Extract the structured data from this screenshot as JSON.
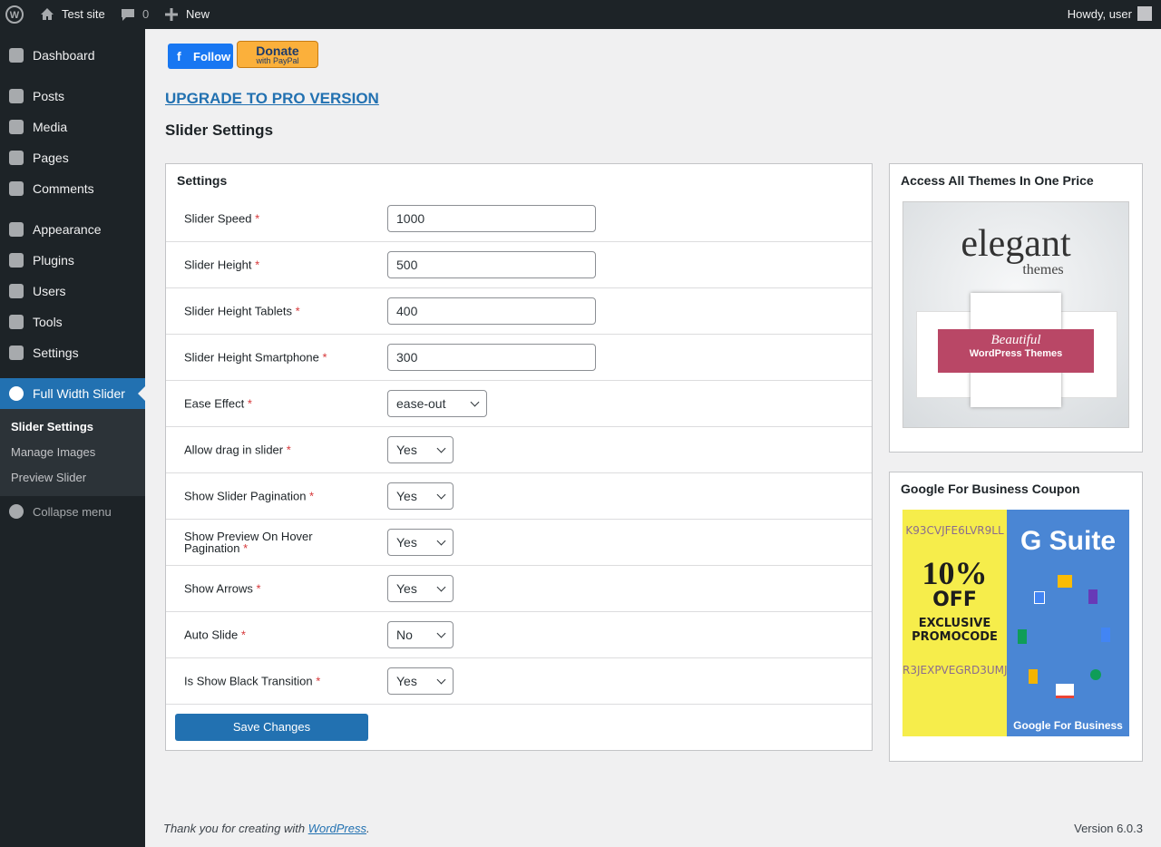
{
  "admin_bar": {
    "site": "Test site",
    "comments": "0",
    "new": "New",
    "howdy": "Howdy, user"
  },
  "menu": [
    [
      "Dashboard"
    ],
    [
      "Posts",
      "Media",
      "Pages",
      "Comments"
    ],
    [
      "Appearance",
      "Plugins",
      "Users",
      "Tools",
      "Settings"
    ]
  ],
  "active_menu": "Full Width Slider",
  "submenu": [
    "Slider Settings",
    "Manage Images",
    "Preview Slider"
  ],
  "collapse": "Collapse menu",
  "follow_button": "Follow",
  "donate_button": {
    "main": "Donate",
    "sub": "with PayPal"
  },
  "upgrade_link": "UPGRADE TO PRO VERSION",
  "page_title": "Slider Settings",
  "panel_title": "Settings",
  "required_mark": "*",
  "fields": [
    {
      "label": "Slider Speed",
      "value": "1000",
      "kind": "text"
    },
    {
      "label": "Slider Height",
      "value": "500",
      "kind": "text"
    },
    {
      "label": "Slider Height Tablets",
      "value": "400",
      "kind": "text"
    },
    {
      "label": "Slider Height Smartphone",
      "value": "300",
      "kind": "text"
    },
    {
      "label": "Ease Effect",
      "value": "ease-out",
      "kind": "select-wide"
    },
    {
      "label": "Allow drag in slider",
      "value": "Yes",
      "kind": "select"
    },
    {
      "label": "Show Slider Pagination",
      "value": "Yes",
      "kind": "select"
    },
    {
      "label": "Show Preview On Hover Pagination",
      "value": "Yes",
      "kind": "select"
    },
    {
      "label": "Show Arrows",
      "value": "Yes",
      "kind": "select"
    },
    {
      "label": "Auto Slide",
      "value": "No",
      "kind": "select"
    },
    {
      "label": "Is Show Black Transition",
      "value": "Yes",
      "kind": "select"
    }
  ],
  "save_button": "Save Changes",
  "widgets": [
    {
      "title": "Access All Themes In One Price",
      "image": {
        "brand": "elegant",
        "brand_sub": "themes",
        "tag1": "Beautiful",
        "tag2": "WordPress Themes"
      }
    },
    {
      "title": "Google For Business Coupon",
      "image": {
        "code1": "K93CVJFE6LVR9LL",
        "pct": "10%",
        "off": "OFF",
        "promo1": "EXCLUSIVE",
        "promo2": "PROMOCODE",
        "code2": "R3JEXPVEGRD3UMJ",
        "gsuite": "G Suite",
        "gfb": "Google For Business"
      }
    }
  ],
  "footer": {
    "thanks": "Thank you for creating with",
    "link": "WordPress",
    "end": ".",
    "version": "Version 6.0.3"
  }
}
